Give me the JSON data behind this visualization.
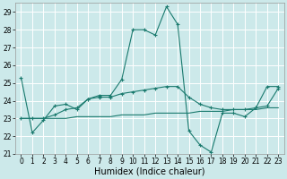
{
  "title": "",
  "xlabel": "Humidex (Indice chaleur)",
  "bg_color": "#cce9ea",
  "grid_color": "#ffffff",
  "line_color": "#1a7a6e",
  "xlim": [
    -0.5,
    23.5
  ],
  "ylim": [
    21,
    29.5
  ],
  "yticks": [
    21,
    22,
    23,
    24,
    25,
    26,
    27,
    28,
    29
  ],
  "xticks": [
    0,
    1,
    2,
    3,
    4,
    5,
    6,
    7,
    8,
    9,
    10,
    11,
    12,
    13,
    14,
    15,
    16,
    17,
    18,
    19,
    20,
    21,
    22,
    23
  ],
  "series1_x": [
    0,
    1,
    2,
    3,
    4,
    5,
    6,
    7,
    8,
    9,
    10,
    11,
    12,
    13,
    14,
    15,
    16,
    17,
    18,
    19,
    20,
    21,
    22,
    23
  ],
  "series1_y": [
    25.3,
    22.2,
    22.9,
    23.7,
    23.8,
    23.5,
    24.1,
    24.3,
    24.3,
    25.2,
    28.0,
    28.0,
    27.7,
    29.3,
    28.3,
    22.3,
    21.5,
    21.1,
    23.3,
    23.3,
    23.1,
    23.6,
    24.8,
    24.8
  ],
  "series2_x": [
    0,
    1,
    2,
    3,
    4,
    5,
    6,
    7,
    8,
    9,
    10,
    11,
    12,
    13,
    14,
    15,
    16,
    17,
    18,
    19,
    20,
    21,
    22,
    23
  ],
  "series2_y": [
    23.0,
    23.0,
    23.0,
    23.0,
    23.0,
    23.1,
    23.1,
    23.1,
    23.1,
    23.2,
    23.2,
    23.2,
    23.3,
    23.3,
    23.3,
    23.3,
    23.4,
    23.4,
    23.4,
    23.5,
    23.5,
    23.5,
    23.6,
    23.6
  ],
  "series3_x": [
    0,
    1,
    2,
    3,
    4,
    5,
    6,
    7,
    8,
    9,
    10,
    11,
    12,
    13,
    14,
    15,
    16,
    17,
    18,
    19,
    20,
    21,
    22,
    23
  ],
  "series3_y": [
    23.0,
    23.0,
    23.0,
    23.2,
    23.5,
    23.6,
    24.1,
    24.2,
    24.2,
    24.4,
    24.5,
    24.6,
    24.7,
    24.8,
    24.8,
    24.2,
    23.8,
    23.6,
    23.5,
    23.5,
    23.5,
    23.6,
    23.7,
    24.7
  ],
  "tick_fontsize": 5.5,
  "xlabel_fontsize": 7.0,
  "lw": 0.8,
  "marker_size": 3.0
}
